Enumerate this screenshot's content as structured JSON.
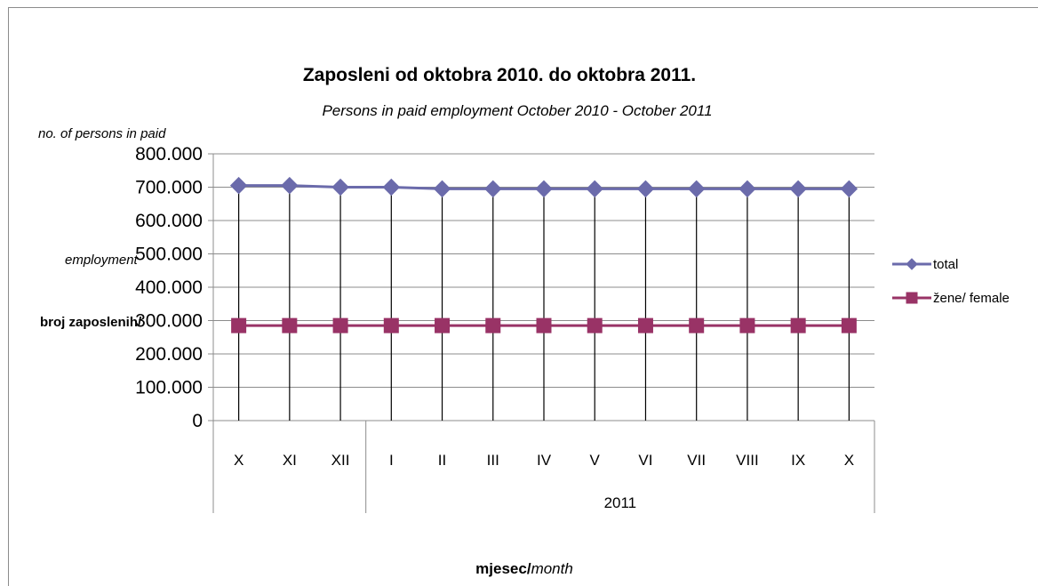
{
  "chart_data": {
    "type": "line",
    "title": "Zaposleni od oktobra 2010. do oktobra 2011.",
    "subtitle": "Persons in paid employment  October 2010 - October 2011",
    "ylabel_lines": [
      "no. of  persons  in paid",
      "employment",
      "broj  zaposlenih/"
    ],
    "xlabel_bold": "mjesec/",
    "xlabel_italic": "month",
    "categories": [
      "X",
      "XI",
      "XII",
      "I",
      "II",
      "III",
      "IV",
      "V",
      "VI",
      "VII",
      "VIII",
      "IX",
      "X"
    ],
    "year_groups": [
      {
        "label": "",
        "count": 3
      },
      {
        "label": "2011",
        "count": 10
      }
    ],
    "yticks": [
      "0",
      "100.000",
      "200.000",
      "300.000",
      "400.000",
      "500.000",
      "600.000",
      "700.000",
      "800.000"
    ],
    "ylim": [
      0,
      800000
    ],
    "grid": true,
    "legend_position": "right",
    "series": [
      {
        "name": "total",
        "color": "#6b6bab",
        "marker": "diamond",
        "values": [
          705000,
          705000,
          700000,
          700000,
          695000,
          695000,
          695000,
          695000,
          695000,
          695000,
          695000,
          695000,
          695000
        ]
      },
      {
        "name": "žene/ female",
        "color": "#993366",
        "marker": "square",
        "values": [
          285000,
          285000,
          285000,
          285000,
          285000,
          285000,
          285000,
          285000,
          285000,
          285000,
          285000,
          285000,
          285000
        ]
      }
    ],
    "drop_lines": true
  }
}
